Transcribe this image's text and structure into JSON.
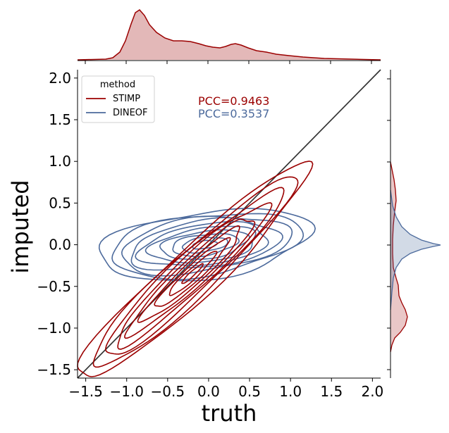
{
  "chart_data": {
    "type": "joint-kde-contour",
    "xlabel": "truth",
    "ylabel": "imputed",
    "xlim": [
      -1.6,
      2.1
    ],
    "ylim": [
      -1.6,
      2.1
    ],
    "xticks": [
      -1.5,
      -1.0,
      -0.5,
      0.0,
      0.5,
      1.0,
      1.5,
      2.0
    ],
    "yticks": [
      -1.5,
      -1.0,
      -0.5,
      0.0,
      0.5,
      1.0,
      1.5,
      2.0
    ],
    "xtick_labels": [
      "−1.5",
      "−1.0",
      "−0.5",
      "0.0",
      "0.5",
      "1.0",
      "1.5",
      "2.0"
    ],
    "ytick_labels": [
      "−1.5",
      "−1.0",
      "−0.5",
      "0.0",
      "0.5",
      "1.0",
      "1.5",
      "2.0"
    ],
    "identity_line": true,
    "legend": {
      "title": "method",
      "placement": "top-left",
      "entries": [
        "STIMP",
        "DINEOF"
      ]
    },
    "annotations": [
      "PCC=0.9463",
      "PCC=0.3537"
    ],
    "series": [
      {
        "name": "STIMP",
        "color": "#9b0000",
        "pcc": 0.9463,
        "kde_center": [
          -0.2,
          -0.35
        ],
        "kde_sd": [
          0.72,
          0.66
        ],
        "kde_corr": 0.95,
        "contour_levels": 9,
        "marginal_truth_peak": -0.82,
        "marginal_imputed_peak": -1.0
      },
      {
        "name": "DINEOF",
        "color": "#4c6a9c",
        "pcc": 0.3537,
        "kde_center": [
          -0.05,
          0.0
        ],
        "kde_sd": [
          0.6,
          0.2
        ],
        "kde_corr": 0.35,
        "contour_levels": 10,
        "marginal_truth_peak": -0.82,
        "marginal_imputed_peak": 0.0
      }
    ]
  }
}
